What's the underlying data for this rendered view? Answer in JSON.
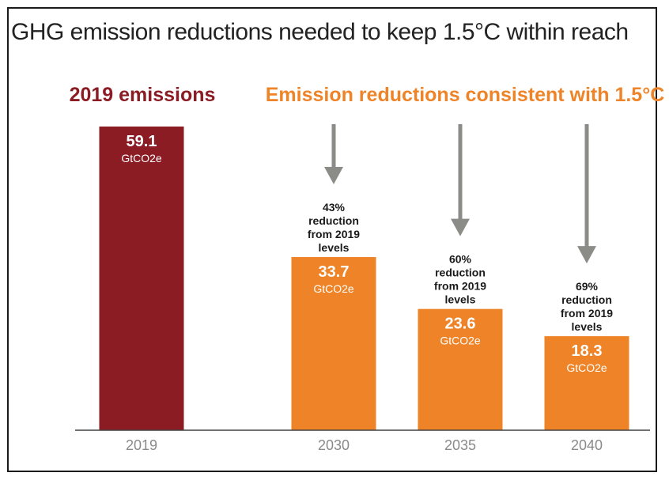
{
  "chart_data": {
    "type": "bar",
    "title": "GHG emission reductions needed to keep 1.5°C within reach",
    "group_labels": {
      "baseline": "2019 emissions",
      "projections": "Emission reductions consistent with 1.5°C"
    },
    "categories": [
      "2019",
      "2030",
      "2035",
      "2040"
    ],
    "values": [
      59.1,
      33.7,
      23.6,
      18.3
    ],
    "value_labels": [
      "59.1",
      "33.7",
      "23.6",
      "18.3"
    ],
    "unit": "GtCO2e",
    "reduction_notes": [
      null,
      [
        "43%",
        "reduction",
        "from 2019",
        "levels"
      ],
      [
        "60%",
        "reduction",
        "from 2019",
        "levels"
      ],
      [
        "69%",
        "reduction",
        "from 2019",
        "levels"
      ]
    ],
    "ylim": [
      0,
      59.1
    ],
    "xlabel": "",
    "ylabel": "",
    "colors": {
      "baseline": "#8b1c24",
      "projection": "#ee8427",
      "arrow": "#8b8b87",
      "axis": "#444444"
    }
  }
}
